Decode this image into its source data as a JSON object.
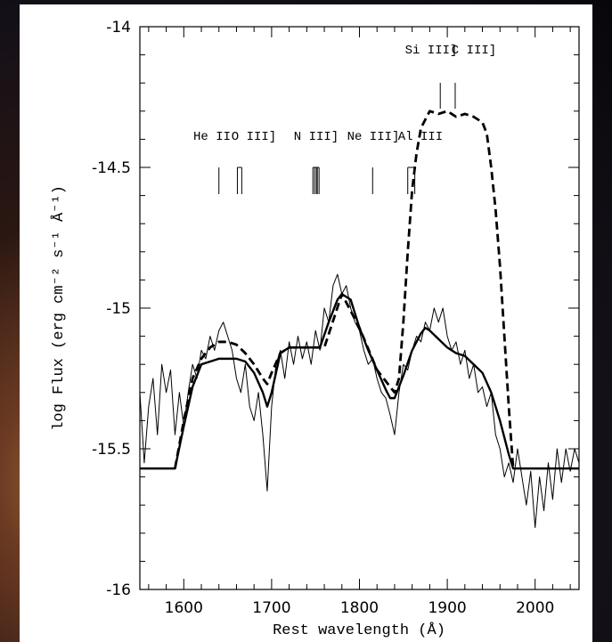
{
  "chart_data": {
    "type": "line",
    "x_label": "Rest wavelength (Å)",
    "y_label": "log Flux (erg cm⁻² s⁻¹ Å⁻¹)",
    "xlim": [
      1550,
      2050
    ],
    "ylim": [
      -16,
      -14
    ],
    "xticks": [
      1600,
      1700,
      1800,
      1900,
      2000
    ],
    "yticks": [
      -14,
      -14.5,
      -15,
      -15.5,
      -16
    ],
    "xminorticks": [
      1560,
      1580,
      1620,
      1640,
      1660,
      1680,
      1720,
      1740,
      1760,
      1780,
      1820,
      1840,
      1860,
      1880,
      1920,
      1940,
      1960,
      1980,
      2020,
      2040
    ],
    "yminorticks": [
      -14.1,
      -14.2,
      -14.3,
      -14.4,
      -14.6,
      -14.7,
      -14.8,
      -14.9,
      -15.1,
      -15.2,
      -15.3,
      -15.4,
      -15.6,
      -15.7,
      -15.8,
      -15.9
    ],
    "series": [
      {
        "style": "thin",
        "color": "#000000",
        "x": [
          1550,
          1555,
          1560,
          1565,
          1570,
          1575,
          1580,
          1585,
          1590,
          1595,
          1600,
          1605,
          1610,
          1615,
          1620,
          1625,
          1630,
          1635,
          1640,
          1645,
          1650,
          1655,
          1660,
          1665,
          1670,
          1675,
          1680,
          1685,
          1690,
          1695,
          1700,
          1705,
          1710,
          1715,
          1720,
          1725,
          1730,
          1735,
          1740,
          1745,
          1750,
          1755,
          1760,
          1765,
          1770,
          1775,
          1780,
          1785,
          1790,
          1795,
          1800,
          1805,
          1810,
          1815,
          1820,
          1825,
          1830,
          1835,
          1840,
          1845,
          1850,
          1855,
          1860,
          1865,
          1870,
          1875,
          1880,
          1885,
          1890,
          1895,
          1900,
          1905,
          1910,
          1915,
          1920,
          1925,
          1930,
          1935,
          1940,
          1945,
          1950,
          1955,
          1960,
          1965,
          1970,
          1975,
          1980,
          1985,
          1990,
          1995,
          2000,
          2005,
          2010,
          2015,
          2020,
          2025,
          2030,
          2035,
          2040,
          2045,
          2050
        ],
        "values": [
          -15.3,
          -15.55,
          -15.35,
          -15.25,
          -15.45,
          -15.2,
          -15.3,
          -15.22,
          -15.45,
          -15.3,
          -15.42,
          -15.3,
          -15.2,
          -15.25,
          -15.15,
          -15.18,
          -15.1,
          -15.15,
          -15.08,
          -15.05,
          -15.1,
          -15.15,
          -15.25,
          -15.3,
          -15.2,
          -15.35,
          -15.4,
          -15.3,
          -15.45,
          -15.65,
          -15.35,
          -15.2,
          -15.15,
          -15.25,
          -15.12,
          -15.2,
          -15.1,
          -15.18,
          -15.12,
          -15.2,
          -15.08,
          -15.15,
          -15.0,
          -15.05,
          -14.92,
          -14.88,
          -14.95,
          -14.92,
          -15.0,
          -15.05,
          -15.08,
          -15.15,
          -15.2,
          -15.18,
          -15.25,
          -15.3,
          -15.32,
          -15.38,
          -15.45,
          -15.3,
          -15.2,
          -15.22,
          -15.15,
          -15.1,
          -15.12,
          -15.05,
          -15.08,
          -15.0,
          -15.05,
          -15.0,
          -15.1,
          -15.15,
          -15.12,
          -15.2,
          -15.15,
          -15.25,
          -15.2,
          -15.3,
          -15.28,
          -15.35,
          -15.3,
          -15.45,
          -15.5,
          -15.6,
          -15.55,
          -15.62,
          -15.5,
          -15.6,
          -15.7,
          -15.58,
          -15.78,
          -15.6,
          -15.72,
          -15.55,
          -15.68,
          -15.5,
          -15.62,
          -15.5,
          -15.58,
          -15.5,
          -15.55
        ]
      },
      {
        "style": "solid",
        "color": "#000000",
        "x": [
          1550,
          1590,
          1600,
          1610,
          1620,
          1640,
          1660,
          1670,
          1680,
          1690,
          1695,
          1700,
          1710,
          1720,
          1740,
          1755,
          1765,
          1775,
          1780,
          1790,
          1800,
          1810,
          1820,
          1830,
          1835,
          1840,
          1850,
          1860,
          1870,
          1875,
          1880,
          1890,
          1900,
          1910,
          1920,
          1930,
          1940,
          1950,
          1960,
          1965,
          1970,
          1975,
          2050
        ],
        "values": [
          -15.57,
          -15.57,
          -15.42,
          -15.28,
          -15.2,
          -15.18,
          -15.18,
          -15.19,
          -15.23,
          -15.3,
          -15.35,
          -15.3,
          -15.16,
          -15.14,
          -15.14,
          -15.14,
          -15.05,
          -14.97,
          -14.95,
          -14.97,
          -15.07,
          -15.15,
          -15.22,
          -15.29,
          -15.32,
          -15.32,
          -15.24,
          -15.15,
          -15.09,
          -15.07,
          -15.08,
          -15.11,
          -15.14,
          -15.16,
          -15.17,
          -15.2,
          -15.23,
          -15.3,
          -15.4,
          -15.46,
          -15.52,
          -15.57,
          -15.57
        ]
      },
      {
        "style": "dashed",
        "color": "#000000",
        "x": [
          1590,
          1600,
          1610,
          1620,
          1630,
          1640,
          1650,
          1660,
          1670,
          1680,
          1690,
          1695,
          1700,
          1710,
          1720,
          1740,
          1760,
          1780,
          1800,
          1820,
          1840,
          1845,
          1850,
          1855,
          1860,
          1865,
          1870,
          1880,
          1890,
          1900,
          1910,
          1920,
          1930,
          1940,
          1945,
          1950,
          1955,
          1960,
          1965,
          1970,
          1975
        ],
        "values": [
          -15.57,
          -15.4,
          -15.25,
          -15.18,
          -15.14,
          -15.12,
          -15.12,
          -15.13,
          -15.16,
          -15.2,
          -15.25,
          -15.27,
          -15.23,
          -15.16,
          -15.14,
          -15.14,
          -15.14,
          -14.95,
          -15.07,
          -15.22,
          -15.3,
          -15.25,
          -15.05,
          -14.8,
          -14.58,
          -14.45,
          -14.36,
          -14.3,
          -14.31,
          -14.3,
          -14.32,
          -14.31,
          -14.32,
          -14.34,
          -14.38,
          -14.5,
          -14.65,
          -14.85,
          -15.1,
          -15.35,
          -15.57
        ]
      }
    ],
    "line_ids": [
      {
        "label": "He II",
        "wavelengths": [
          1640
        ]
      },
      {
        "label": "O III]",
        "wavelengths": [
          1661,
          1666
        ]
      },
      {
        "label": "N III]",
        "wavelengths": [
          1747,
          1749,
          1751,
          1752,
          1754
        ]
      },
      {
        "label": "Ne III]",
        "wavelengths": [
          1815
        ]
      },
      {
        "label": "Al III",
        "wavelengths": [
          1855,
          1863
        ]
      },
      {
        "label": "Si III]",
        "wavelengths": [
          1892
        ]
      },
      {
        "label": "C III]",
        "wavelengths": [
          1909
        ]
      }
    ]
  }
}
